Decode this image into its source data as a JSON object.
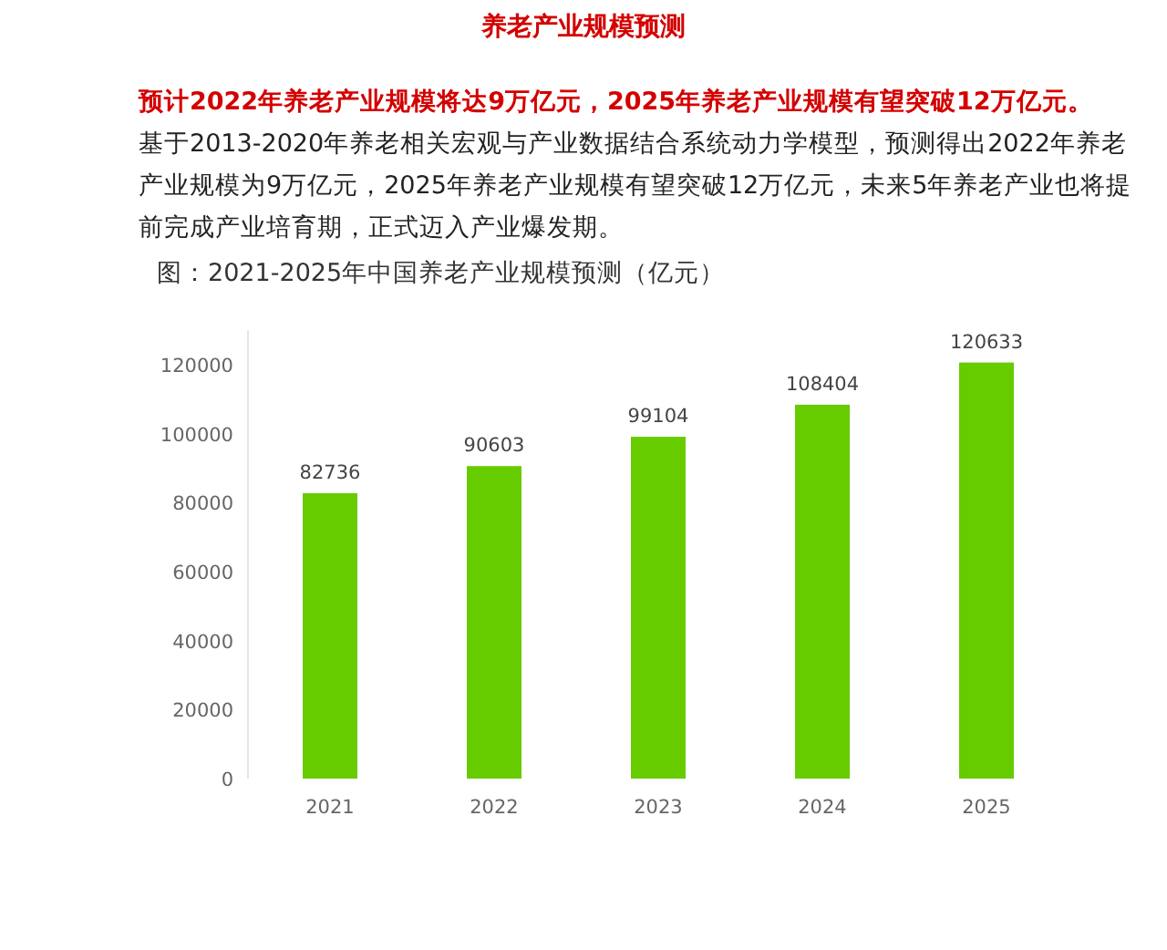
{
  "chart_data": {
    "type": "bar",
    "title": "养老产业规模预测",
    "subtitle": "预计2022年养老产业规模将达9万亿元，2025年养老产业规模有望突破12万亿元。",
    "annotations": [
      "基于2013-2020年养老相关宏观与产业数据结合系统动力学模型，预测得出2022年养老产业规模为9万亿元，2025年养老产业规模有望突破12万亿元，未来5年养老产业也将提前完成产业培育期，正式迈入产业爆发期。",
      "图：2021-2025年中国养老产业规模预测（亿元）"
    ],
    "categories": [
      "2021",
      "2022",
      "2023",
      "2024",
      "2025"
    ],
    "values": [
      82736,
      90603,
      99104,
      108404,
      120633
    ],
    "color": "#66cc00",
    "ylim": [
      0,
      130000
    ],
    "yticks": [
      0,
      20000,
      40000,
      60000,
      80000,
      100000,
      120000
    ],
    "data_labels": true
  }
}
